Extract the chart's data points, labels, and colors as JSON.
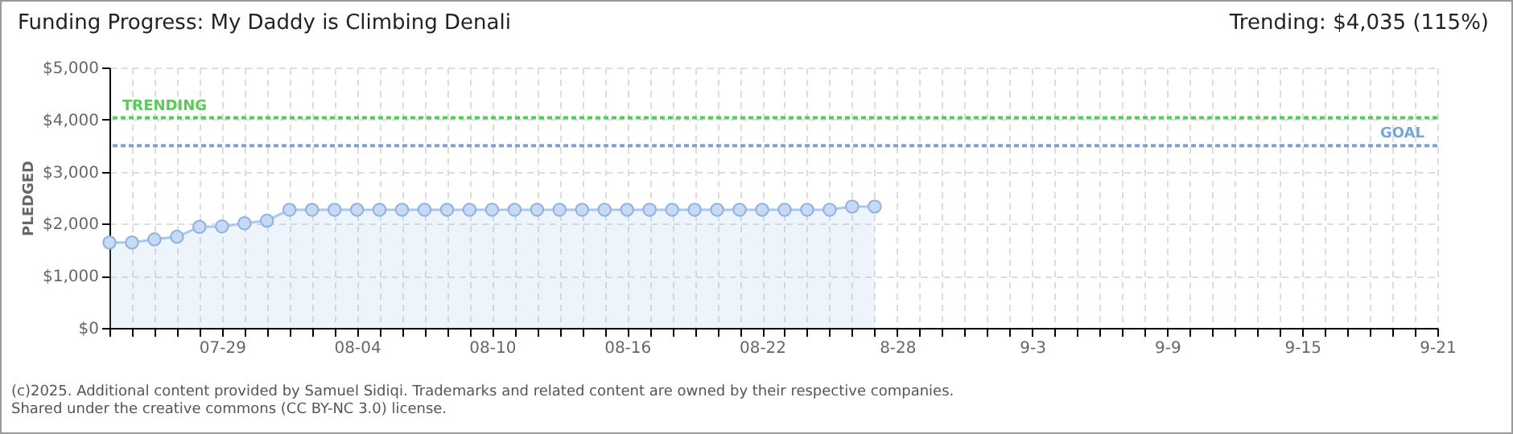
{
  "chart_data": {
    "type": "area",
    "title": "Funding Progress: My Daddy is Climbing Denali",
    "annotations": [
      "Trending: $4,035 (115%)",
      "(c)2025. Additional content provided by Samuel Sidiqi. Trademarks and related content are owned by their respective companies.",
      "Shared under the creative commons (CC BY-NC 3.0) license."
    ],
    "ylabel": "PLEDGED",
    "x": [
      "2025-07-24",
      "2025-07-25",
      "2025-07-26",
      "2025-07-27",
      "2025-07-28",
      "2025-07-29",
      "2025-07-30",
      "2025-07-31",
      "2025-08-01",
      "2025-08-02",
      "2025-08-03",
      "2025-08-04",
      "2025-08-05",
      "2025-08-06",
      "2025-08-07",
      "2025-08-08",
      "2025-08-09",
      "2025-08-10",
      "2025-08-11",
      "2025-08-12",
      "2025-08-13",
      "2025-08-14",
      "2025-08-15",
      "2025-08-16",
      "2025-08-17",
      "2025-08-18",
      "2025-08-19",
      "2025-08-20",
      "2025-08-21",
      "2025-08-22",
      "2025-08-23",
      "2025-08-24",
      "2025-08-25",
      "2025-08-26",
      "2025-08-27"
    ],
    "series": [
      {
        "color": "#a9c8ee",
        "values": [
          1640,
          1640,
          1700,
          1750,
          1940,
          1950,
          2010,
          2060,
          2270,
          2270,
          2270,
          2270,
          2270,
          2270,
          2270,
          2270,
          2270,
          2270,
          2270,
          2270,
          2270,
          2270,
          2270,
          2270,
          2270,
          2270,
          2270,
          2270,
          2270,
          2270,
          2270,
          2270,
          2270,
          2330,
          2330
        ]
      }
    ],
    "xlim": [
      "2025-07-24",
      "2025-09-21"
    ],
    "xticks": [
      {
        "value": "2025-07-24",
        "label": null
      },
      {
        "value": "2025-07-25",
        "label": null
      },
      {
        "value": "2025-07-26",
        "label": null
      },
      {
        "value": "2025-07-27",
        "label": null
      },
      {
        "value": "2025-07-28",
        "label": null
      },
      {
        "value": "2025-07-29",
        "label": "07-29"
      },
      {
        "value": "2025-07-30",
        "label": null
      },
      {
        "value": "2025-07-31",
        "label": null
      },
      {
        "value": "2025-08-01",
        "label": null
      },
      {
        "value": "2025-08-02",
        "label": null
      },
      {
        "value": "2025-08-03",
        "label": null
      },
      {
        "value": "2025-08-04",
        "label": "08-04"
      },
      {
        "value": "2025-08-05",
        "label": null
      },
      {
        "value": "2025-08-06",
        "label": null
      },
      {
        "value": "2025-08-07",
        "label": null
      },
      {
        "value": "2025-08-08",
        "label": null
      },
      {
        "value": "2025-08-09",
        "label": null
      },
      {
        "value": "2025-08-10",
        "label": "08-10"
      },
      {
        "value": "2025-08-11",
        "label": null
      },
      {
        "value": "2025-08-12",
        "label": null
      },
      {
        "value": "2025-08-13",
        "label": null
      },
      {
        "value": "2025-08-14",
        "label": null
      },
      {
        "value": "2025-08-15",
        "label": null
      },
      {
        "value": "2025-08-16",
        "label": "08-16"
      },
      {
        "value": "2025-08-17",
        "label": null
      },
      {
        "value": "2025-08-18",
        "label": null
      },
      {
        "value": "2025-08-19",
        "label": null
      },
      {
        "value": "2025-08-20",
        "label": null
      },
      {
        "value": "2025-08-21",
        "label": null
      },
      {
        "value": "2025-08-22",
        "label": "08-22"
      },
      {
        "value": "2025-08-23",
        "label": null
      },
      {
        "value": "2025-08-24",
        "label": null
      },
      {
        "value": "2025-08-25",
        "label": null
      },
      {
        "value": "2025-08-26",
        "label": null
      },
      {
        "value": "2025-08-27",
        "label": null
      },
      {
        "value": "2025-08-28",
        "label": "8-28"
      },
      {
        "value": "2025-08-29",
        "label": null
      },
      {
        "value": "2025-08-30",
        "label": null
      },
      {
        "value": "2025-08-31",
        "label": null
      },
      {
        "value": "2025-09-01",
        "label": null
      },
      {
        "value": "2025-09-02",
        "label": null
      },
      {
        "value": "2025-09-03",
        "label": "9-3"
      },
      {
        "value": "2025-09-04",
        "label": null
      },
      {
        "value": "2025-09-05",
        "label": null
      },
      {
        "value": "2025-09-06",
        "label": null
      },
      {
        "value": "2025-09-07",
        "label": null
      },
      {
        "value": "2025-09-08",
        "label": null
      },
      {
        "value": "2025-09-09",
        "label": "9-9"
      },
      {
        "value": "2025-09-10",
        "label": null
      },
      {
        "value": "2025-09-11",
        "label": null
      },
      {
        "value": "2025-09-12",
        "label": null
      },
      {
        "value": "2025-09-13",
        "label": null
      },
      {
        "value": "2025-09-14",
        "label": null
      },
      {
        "value": "2025-09-15",
        "label": "9-15"
      },
      {
        "value": "2025-09-16",
        "label": null
      },
      {
        "value": "2025-09-17",
        "label": null
      },
      {
        "value": "2025-09-18",
        "label": null
      },
      {
        "value": "2025-09-19",
        "label": null
      },
      {
        "value": "2025-09-20",
        "label": null
      },
      {
        "value": "2025-09-21",
        "label": "9-21"
      }
    ],
    "ylim": [
      0,
      5000
    ],
    "yticks": [
      {
        "value": 0,
        "label": "$0"
      },
      {
        "value": 1000,
        "label": "$1,000"
      },
      {
        "value": 2000,
        "label": "$2,000"
      },
      {
        "value": 3000,
        "label": "$3,000"
      },
      {
        "value": 4000,
        "label": "$4,000"
      },
      {
        "value": 5000,
        "label": "$5,000"
      }
    ],
    "ref_lines": [
      {
        "axis": "y",
        "value": 4035,
        "label": "TRENDING",
        "color": "#5cc85c",
        "line_style": "dotted"
      },
      {
        "axis": "y",
        "value": 3500,
        "label": "GOAL",
        "color": "#7aa3d8",
        "line_style": "dotted"
      }
    ],
    "grid": true,
    "marker": "circle"
  }
}
